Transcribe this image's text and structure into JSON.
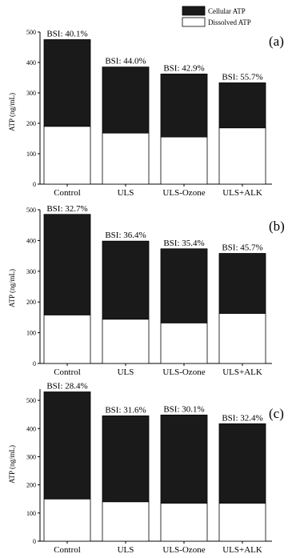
{
  "chart_data": [
    {
      "type": "bar",
      "stacked": true,
      "panel_label": "(a)",
      "ylabel": "ATP (ng/mL)",
      "ylim": [
        0,
        500
      ],
      "yticks": [
        "0",
        "100",
        "200",
        "300",
        "400",
        "500"
      ],
      "categories": [
        "Control",
        "ULS",
        "ULS-Ozone",
        "ULS+ALK"
      ],
      "series": [
        {
          "name": "Dissolved ATP",
          "color": "#ffffff",
          "values": [
            190,
            168,
            155,
            185
          ]
        },
        {
          "name": "Cellular ATP",
          "color": "#1a1a1a",
          "values": [
            285,
            217,
            207,
            148
          ]
        }
      ],
      "annotations": [
        "BSI: 40.1%",
        "BSI: 44.0%",
        "BSI: 42.9%",
        "BSI: 55.7%"
      ],
      "legend": {
        "position": "top-right",
        "entries": [
          "Cellular ATP",
          "Dissolved ATP"
        ]
      }
    },
    {
      "type": "bar",
      "stacked": true,
      "panel_label": "(b)",
      "ylabel": "ATP (ng/mL)",
      "ylim": [
        0,
        500
      ],
      "yticks": [
        "0",
        "100",
        "200",
        "300",
        "400",
        "500"
      ],
      "categories": [
        "Control",
        "ULS",
        "ULS-Ozone",
        "ULS+ALK"
      ],
      "series": [
        {
          "name": "Dissolved ATP",
          "color": "#ffffff",
          "values": [
            158,
            144,
            132,
            163
          ]
        },
        {
          "name": "Cellular ATP",
          "color": "#1a1a1a",
          "values": [
            327,
            254,
            241,
            195
          ]
        }
      ],
      "annotations": [
        "BSI: 32.7%",
        "BSI: 36.4%",
        "BSI: 35.4%",
        "BSI: 45.7%"
      ]
    },
    {
      "type": "bar",
      "stacked": true,
      "panel_label": "(c)",
      "ylabel": "ATP (ng/mL)",
      "ylim": [
        0,
        540
      ],
      "yticks": [
        "0",
        "100",
        "200",
        "300",
        "400",
        "500"
      ],
      "categories": [
        "Control",
        "ULS",
        "ULS-Ozone",
        "ULS+ALK"
      ],
      "series": [
        {
          "name": "Dissolved ATP",
          "color": "#ffffff",
          "values": [
            150,
            140,
            135,
            135
          ]
        },
        {
          "name": "Cellular ATP",
          "color": "#1a1a1a",
          "values": [
            380,
            305,
            313,
            282
          ]
        }
      ],
      "annotations": [
        "BSI: 28.4%",
        "BSI: 31.6%",
        "BSI: 30.1%",
        "BSI: 32.4%"
      ]
    }
  ]
}
